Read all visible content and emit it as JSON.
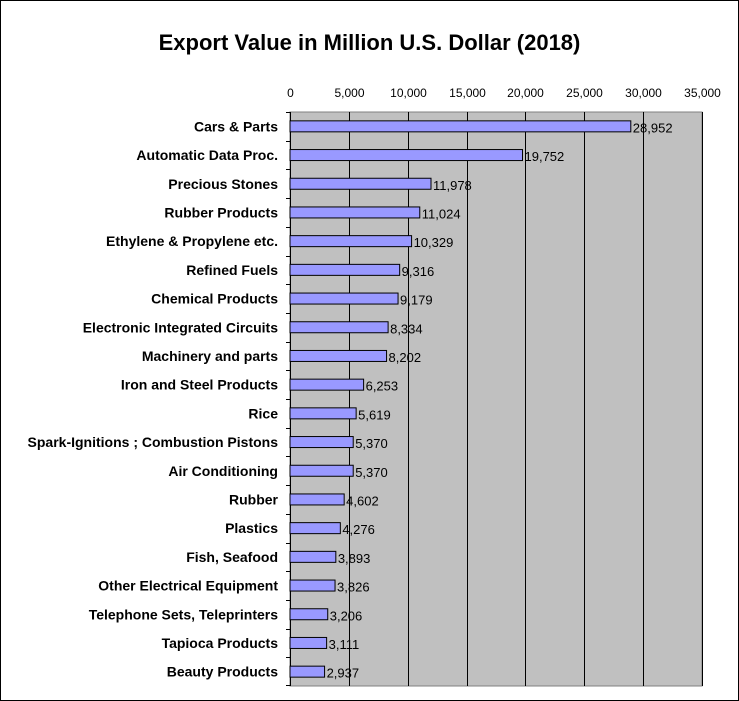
{
  "chart_data": {
    "type": "bar",
    "orientation": "horizontal",
    "title": "Export Value in Million U.S. Dollar (2018)",
    "xlabel": "",
    "ylabel": "",
    "xlim": [
      0,
      35000
    ],
    "ticks": [
      "0",
      "5,000",
      "10,000",
      "15,000",
      "20,000",
      "25,000",
      "30,000",
      "35,000"
    ],
    "grid": true,
    "legend": "none",
    "categories": [
      "Cars & Parts",
      "Automatic Data Proc.",
      "Precious Stones",
      "Rubber Products",
      "Ethylene & Propylene etc.",
      "Refined Fuels",
      "Chemical Products",
      "Electronic Integrated Circuits",
      "Machinery and parts",
      "Iron and Steel Products",
      "Rice",
      "Spark-Ignitions ; Combustion Pistons",
      "Air Conditioning",
      "Rubber",
      "Plastics",
      "Fish, Seafood",
      "Other Electrical Equipment",
      "Telephone Sets, Teleprinters",
      "Tapioca Products",
      "Beauty Products"
    ],
    "values": [
      28952,
      19752,
      11978,
      11024,
      10329,
      9316,
      9179,
      8334,
      8202,
      6253,
      5619,
      5370,
      5370,
      4602,
      4276,
      3893,
      3826,
      3206,
      3111,
      2937
    ],
    "value_labels": [
      "28,952",
      "19,752",
      "11,978",
      "11,024",
      "10,329",
      "9,316",
      "9,179",
      "8,334",
      "8,202",
      "6,253",
      "5,619",
      "5,370",
      "5,370",
      "4,602",
      "4,276",
      "3,893",
      "3,826",
      "3,206",
      "3,111",
      "2,937"
    ],
    "colors": {
      "bar": "#9999ff",
      "plot_bg": "#c0c0c0",
      "grid": "#000000"
    }
  }
}
